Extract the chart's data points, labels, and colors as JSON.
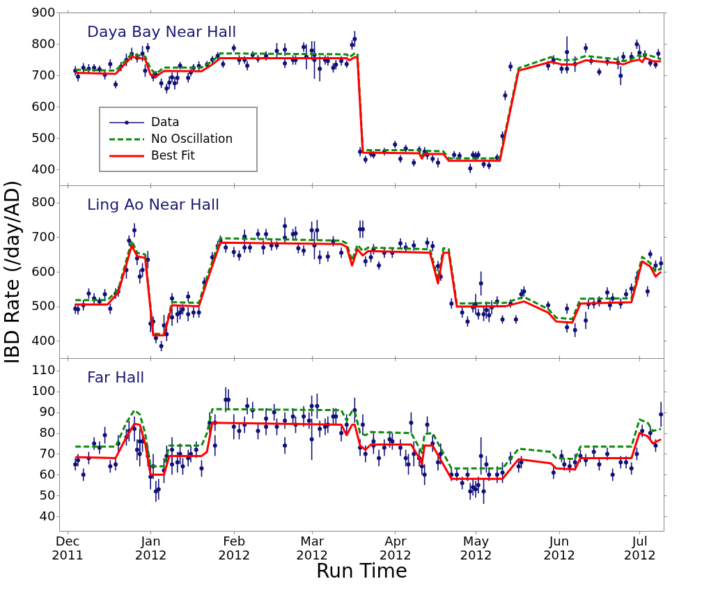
{
  "chart_data": [
    {
      "type": "line",
      "title": "Daya Bay Near Hall",
      "xlim": [
        "2011-11-28",
        "2012-07-10"
      ],
      "ylim": [
        350,
        900
      ],
      "yticks": [
        400,
        500,
        600,
        700,
        800,
        900
      ],
      "tick_labels": "y",
      "legend": "bottom left",
      "xticks": [
        {
          "value": "2011-12-01",
          "label": null
        },
        {
          "value": "2012-01-01",
          "label": null
        },
        {
          "value": "2012-02-01",
          "label": null
        },
        {
          "value": "2012-03-01",
          "label": null
        },
        {
          "value": "2012-04-01",
          "label": null
        },
        {
          "value": "2012-05-01",
          "label": null
        },
        {
          "value": "2012-06-01",
          "label": null
        },
        {
          "value": "2012-07-01",
          "label": null
        }
      ],
      "series": [
        {
          "name": "Data",
          "type": "scatter",
          "marker": "circle",
          "color": "#10107a",
          "x": [
            "2011-12-04",
            "2011-12-05",
            "2011-12-07",
            "2011-12-09",
            "2011-12-11",
            "2011-12-13",
            "2011-12-15",
            "2011-12-17",
            "2011-12-19",
            "2011-12-21",
            "2011-12-23",
            "2011-12-25",
            "2011-12-27",
            "2011-12-29",
            "2011-12-30",
            "2011-12-31",
            "2012-01-02",
            "2012-01-03",
            "2012-01-05",
            "2012-01-07",
            "2012-01-08",
            "2012-01-09",
            "2012-01-10",
            "2012-01-11",
            "2012-01-12",
            "2012-01-15",
            "2012-01-16",
            "2012-01-17",
            "2012-01-19",
            "2012-01-22",
            "2012-01-24",
            "2012-01-26",
            "2012-01-28",
            "2012-02-01",
            "2012-02-03",
            "2012-02-05",
            "2012-02-06",
            "2012-02-08",
            "2012-02-10",
            "2012-02-13",
            "2012-02-17",
            "2012-02-20",
            "2012-02-20",
            "2012-02-23",
            "2012-02-24",
            "2012-02-27",
            "2012-02-28",
            "2012-03-01",
            "2012-03-02",
            "2012-03-02",
            "2012-03-04",
            "2012-03-06",
            "2012-03-07",
            "2012-03-09",
            "2012-03-10",
            "2012-03-12",
            "2012-03-14",
            "2012-03-16",
            "2012-03-17",
            "2012-03-19",
            "2012-03-21",
            "2012-03-23",
            "2012-03-24",
            "2012-03-28",
            "2012-04-01",
            "2012-04-03",
            "2012-04-05",
            "2012-04-08",
            "2012-04-10",
            "2012-04-12",
            "2012-04-13",
            "2012-04-15",
            "2012-04-17",
            "2012-04-23",
            "2012-04-25",
            "2012-04-29",
            "2012-04-30",
            "2012-05-01",
            "2012-05-02",
            "2012-05-04",
            "2012-05-06",
            "2012-05-09",
            "2012-05-11",
            "2012-05-12",
            "2012-05-14",
            "2012-05-28",
            "2012-05-30",
            "2012-06-02",
            "2012-06-04",
            "2012-06-04",
            "2012-06-07",
            "2012-06-11",
            "2012-06-13",
            "2012-06-16",
            "2012-06-19",
            "2012-06-23",
            "2012-06-24",
            "2012-06-25",
            "2012-06-28",
            "2012-06-30",
            "2012-07-01",
            "2012-07-03",
            "2012-07-05",
            "2012-07-07",
            "2012-07-08"
          ],
          "values": [
            715,
            696,
            724,
            721,
            724,
            719,
            702,
            736,
            671,
            728,
            749,
            768,
            756,
            769,
            715,
            788,
            696,
            702,
            675,
            658,
            677,
            694,
            675,
            692,
            731,
            692,
            709,
            724,
            730,
            734,
            750,
            762,
            736,
            787,
            749,
            749,
            731,
            765,
            753,
            762,
            778,
            782,
            738,
            749,
            749,
            790,
            759,
            779,
            765,
            749,
            721,
            749,
            746,
            724,
            734,
            746,
            736,
            797,
            816,
            457,
            432,
            451,
            447,
            457,
            480,
            434,
            467,
            422,
            463,
            457,
            447,
            434,
            422,
            447,
            444,
            404,
            447,
            442,
            447,
            417,
            413,
            438,
            507,
            636,
            728,
            731,
            749,
            721,
            774,
            721,
            736,
            787,
            746,
            711,
            743,
            740,
            699,
            759,
            759,
            799,
            772,
            765,
            740,
            734,
            769
          ],
          "errors": [
            15,
            15,
            15,
            15,
            12,
            12,
            15,
            15,
            12,
            15,
            20,
            20,
            15,
            25,
            20,
            15,
            15,
            12,
            15,
            15,
            20,
            15,
            20,
            20,
            12,
            15,
            12,
            12,
            15,
            12,
            12,
            12,
            12,
            12,
            15,
            12,
            15,
            12,
            12,
            15,
            25,
            20,
            15,
            15,
            15,
            15,
            40,
            30,
            20,
            60,
            40,
            15,
            15,
            15,
            15,
            15,
            12,
            15,
            25,
            15,
            12,
            12,
            12,
            12,
            12,
            12,
            12,
            12,
            12,
            15,
            15,
            12,
            15,
            12,
            12,
            15,
            12,
            15,
            12,
            12,
            12,
            12,
            15,
            15,
            15,
            15,
            15,
            15,
            50,
            15,
            25,
            15,
            12,
            12,
            12,
            20,
            30,
            15,
            15,
            15,
            25,
            15,
            12,
            12,
            15
          ]
        },
        {
          "name": "No Oscillation",
          "line_style": "dashed",
          "color": "#0a8a0a",
          "x": [
            "2011-12-04",
            "2011-12-19",
            "2011-12-25",
            "2011-12-30",
            "2012-01-01",
            "2012-01-03",
            "2012-01-06",
            "2012-01-20",
            "2012-01-24",
            "2012-01-27",
            "2012-03-14",
            "2012-03-15",
            "2012-03-17",
            "2012-03-18",
            "2012-03-20",
            "2012-04-10",
            "2012-04-11",
            "2012-04-12",
            "2012-04-19",
            "2012-04-21",
            "2012-05-10",
            "2012-05-17",
            "2012-05-29",
            "2012-06-02",
            "2012-06-07",
            "2012-06-11",
            "2012-06-22",
            "2012-06-25",
            "2012-06-28",
            "2012-07-01",
            "2012-07-02",
            "2012-07-03",
            "2012-07-06",
            "2012-07-09"
          ],
          "values": [
            718,
            715,
            768,
            760,
            720,
            705,
            725,
            725,
            745,
            770,
            767,
            758,
            770,
            770,
            462,
            462,
            442,
            460,
            458,
            436,
            436,
            723,
            758,
            748,
            750,
            762,
            752,
            745,
            752,
            765,
            755,
            768,
            760,
            752
          ]
        },
        {
          "name": "Best Fit",
          "line_style": "solid",
          "color": "#ff0000",
          "x": [
            "2011-12-04",
            "2011-12-19",
            "2011-12-25",
            "2011-12-30",
            "2012-01-01",
            "2012-01-03",
            "2012-01-06",
            "2012-01-20",
            "2012-01-24",
            "2012-01-27",
            "2012-03-14",
            "2012-03-15",
            "2012-03-17",
            "2012-03-18",
            "2012-03-20",
            "2012-04-10",
            "2012-04-11",
            "2012-04-12",
            "2012-04-19",
            "2012-04-21",
            "2012-05-10",
            "2012-05-17",
            "2012-05-29",
            "2012-06-02",
            "2012-06-07",
            "2012-06-11",
            "2012-06-22",
            "2012-06-25",
            "2012-06-28",
            "2012-07-01",
            "2012-07-02",
            "2012-07-03",
            "2012-07-06",
            "2012-07-09"
          ],
          "values": [
            708,
            705,
            759,
            752,
            702,
            696,
            714,
            713,
            735,
            755,
            755,
            748,
            758,
            757,
            454,
            452,
            435,
            450,
            450,
            428,
            428,
            715,
            743,
            735,
            735,
            748,
            740,
            735,
            745,
            750,
            742,
            756,
            745,
            745
          ]
        }
      ]
    },
    {
      "type": "line",
      "title": "Ling Ao Near Hall",
      "ylabel": "IBD Rate (/day/AD)",
      "xlim": [
        "2011-11-28",
        "2012-07-10"
      ],
      "ylim": [
        350,
        850
      ],
      "yticks": [
        400,
        500,
        600,
        700,
        800
      ],
      "tick_labels": "y",
      "xticks": [
        {
          "value": "2011-12-01",
          "label": null
        },
        {
          "value": "2012-01-01",
          "label": null
        },
        {
          "value": "2012-02-01",
          "label": null
        },
        {
          "value": "2012-03-01",
          "label": null
        },
        {
          "value": "2012-04-01",
          "label": null
        },
        {
          "value": "2012-05-01",
          "label": null
        },
        {
          "value": "2012-06-01",
          "label": null
        },
        {
          "value": "2012-07-01",
          "label": null
        }
      ],
      "series": [
        {
          "type": "scatter",
          "marker": "circle",
          "color": "#10107a",
          "x": [
            "2011-12-04",
            "2011-12-05",
            "2011-12-07",
            "2011-12-09",
            "2011-12-11",
            "2011-12-13",
            "2011-12-15",
            "2011-12-17",
            "2011-12-19",
            "2011-12-20",
            "2011-12-23",
            "2011-12-24",
            "2011-12-26",
            "2011-12-27",
            "2011-12-28",
            "2011-12-29",
            "2011-12-31",
            "2012-01-01",
            "2012-01-02",
            "2012-01-03",
            "2012-01-05",
            "2012-01-06",
            "2012-01-07",
            "2012-01-09",
            "2012-01-09",
            "2012-01-11",
            "2012-01-12",
            "2012-01-13",
            "2012-01-15",
            "2012-01-15",
            "2012-01-17",
            "2012-01-19",
            "2012-01-21",
            "2012-01-24",
            "2012-01-26",
            "2012-01-27",
            "2012-01-29",
            "2012-02-01",
            "2012-02-03",
            "2012-02-05",
            "2012-02-05",
            "2012-02-07",
            "2012-02-10",
            "2012-02-12",
            "2012-02-13",
            "2012-02-15",
            "2012-02-17",
            "2012-02-20",
            "2012-02-20",
            "2012-02-23",
            "2012-02-24",
            "2012-02-25",
            "2012-02-27",
            "2012-03-01",
            "2012-03-02",
            "2012-03-03",
            "2012-03-04",
            "2012-03-07",
            "2012-03-09",
            "2012-03-12",
            "2012-03-19",
            "2012-03-20",
            "2012-03-21",
            "2012-03-23",
            "2012-03-24",
            "2012-03-26",
            "2012-03-28",
            "2012-03-31",
            "2012-04-03",
            "2012-04-05",
            "2012-04-08",
            "2012-04-13",
            "2012-04-15",
            "2012-04-17",
            "2012-04-18",
            "2012-04-22",
            "2012-04-26",
            "2012-04-28",
            "2012-04-30",
            "2012-05-01",
            "2012-05-02",
            "2012-05-03",
            "2012-05-04",
            "2012-05-05",
            "2012-05-06",
            "2012-05-07",
            "2012-05-09",
            "2012-05-11",
            "2012-05-14",
            "2012-05-16",
            "2012-05-18",
            "2012-05-19",
            "2012-05-28",
            "2012-06-04",
            "2012-06-04",
            "2012-06-07",
            "2012-06-11",
            "2012-06-12",
            "2012-06-14",
            "2012-06-16",
            "2012-06-19",
            "2012-06-20",
            "2012-06-21",
            "2012-06-24",
            "2012-06-26",
            "2012-06-28",
            "2012-06-30",
            "2012-07-04",
            "2012-07-05",
            "2012-07-07",
            "2012-07-09"
          ],
          "values": [
            493,
            491,
            503,
            537,
            523,
            514,
            535,
            493,
            537,
            543,
            605,
            690,
            720,
            639,
            586,
            605,
            635,
            450,
            456,
            408,
            385,
            445,
            419,
            523,
            468,
            477,
            482,
            491,
            477,
            528,
            482,
            482,
            569,
            642,
            674,
            690,
            670,
            657,
            647,
            702,
            670,
            670,
            709,
            670,
            709,
            676,
            676,
            732,
            699,
            709,
            711,
            668,
            661,
            720,
            676,
            720,
            642,
            644,
            688,
            655,
            723,
            723,
            630,
            642,
            665,
            618,
            655,
            655,
            682,
            670,
            676,
            684,
            674,
            616,
            586,
            508,
            482,
            456,
            497,
            506,
            477,
            566,
            477,
            489,
            474,
            497,
            514,
            462,
            508,
            462,
            535,
            543,
            503,
            439,
            493,
            431,
            459,
            506,
            508,
            514,
            540,
            503,
            523,
            508,
            535,
            551,
            581,
            543,
            651,
            618,
            624
          ],
          "errors": [
            15,
            15,
            15,
            15,
            15,
            12,
            15,
            15,
            15,
            15,
            25,
            15,
            20,
            20,
            20,
            20,
            25,
            25,
            15,
            15,
            15,
            30,
            20,
            15,
            25,
            25,
            20,
            15,
            20,
            15,
            15,
            15,
            15,
            15,
            15,
            15,
            15,
            15,
            15,
            20,
            15,
            15,
            15,
            20,
            15,
            15,
            12,
            25,
            15,
            15,
            20,
            15,
            15,
            25,
            40,
            30,
            20,
            15,
            15,
            15,
            25,
            25,
            15,
            15,
            15,
            12,
            15,
            15,
            15,
            15,
            15,
            15,
            15,
            15,
            12,
            15,
            15,
            15,
            15,
            30,
            15,
            35,
            20,
            25,
            20,
            20,
            15,
            12,
            12,
            12,
            15,
            15,
            12,
            15,
            15,
            20,
            25,
            15,
            15,
            15,
            15,
            15,
            15,
            15,
            15,
            15,
            20,
            15,
            12,
            15,
            20
          ]
        },
        {
          "line_style": "dashed",
          "color": "#0a8a0a",
          "x": [
            "2011-12-04",
            "2011-12-16",
            "2011-12-20",
            "2011-12-25",
            "2011-12-27",
            "2011-12-30",
            "2012-01-02",
            "2012-01-06",
            "2012-01-09",
            "2012-01-19",
            "2012-01-22",
            "2012-01-27",
            "2012-03-12",
            "2012-03-14",
            "2012-03-16",
            "2012-03-18",
            "2012-03-20",
            "2012-03-22",
            "2012-04-14",
            "2012-04-17",
            "2012-04-19",
            "2012-04-21",
            "2012-04-24",
            "2012-05-12",
            "2012-05-19",
            "2012-05-28",
            "2012-05-31",
            "2012-06-06",
            "2012-06-09",
            "2012-06-28",
            "2012-07-02",
            "2012-07-05",
            "2012-07-07",
            "2012-07-09"
          ],
          "values": [
            518,
            518,
            548,
            690,
            655,
            650,
            420,
            420,
            512,
            510,
            585,
            697,
            690,
            682,
            632,
            678,
            660,
            670,
            665,
            578,
            668,
            665,
            508,
            510,
            527,
            492,
            467,
            463,
            522,
            523,
            643,
            625,
            600,
            610
          ]
        },
        {
          "line_style": "solid",
          "color": "#ff0000",
          "x": [
            "2011-12-04",
            "2011-12-16",
            "2011-12-20",
            "2011-12-25",
            "2011-12-27",
            "2011-12-30",
            "2012-01-02",
            "2012-01-06",
            "2012-01-09",
            "2012-01-19",
            "2012-01-22",
            "2012-01-27",
            "2012-03-12",
            "2012-03-14",
            "2012-03-16",
            "2012-03-18",
            "2012-03-20",
            "2012-03-22",
            "2012-04-14",
            "2012-04-17",
            "2012-04-19",
            "2012-04-21",
            "2012-04-24",
            "2012-05-12",
            "2012-05-19",
            "2012-05-28",
            "2012-05-31",
            "2012-06-06",
            "2012-06-09",
            "2012-06-28",
            "2012-07-02",
            "2012-07-05",
            "2012-07-07",
            "2012-07-09"
          ],
          "values": [
            505,
            505,
            540,
            676,
            645,
            640,
            416,
            416,
            503,
            500,
            572,
            684,
            680,
            672,
            618,
            665,
            647,
            660,
            655,
            566,
            655,
            655,
            499,
            500,
            514,
            482,
            456,
            453,
            508,
            512,
            630,
            615,
            586,
            600
          ]
        }
      ]
    },
    {
      "type": "line",
      "title": "Far Hall",
      "xlabel": "Run Time",
      "xlim": [
        "2011-11-28",
        "2012-07-10"
      ],
      "ylim": [
        33,
        116
      ],
      "yticks": [
        40,
        50,
        60,
        70,
        80,
        90,
        100,
        110
      ],
      "xticks": [
        {
          "value": "2011-12-01",
          "label": "Dec\n2011"
        },
        {
          "value": "2012-01-01",
          "label": "Jan\n2012"
        },
        {
          "value": "2012-02-01",
          "label": "Feb\n2012"
        },
        {
          "value": "2012-03-01",
          "label": "Mar\n2012"
        },
        {
          "value": "2012-04-01",
          "label": "Apr\n2012"
        },
        {
          "value": "2012-05-01",
          "label": "May\n2012"
        },
        {
          "value": "2012-06-01",
          "label": "Jun\n2012"
        },
        {
          "value": "2012-07-01",
          "label": "Jul\n2012"
        }
      ],
      "series": [
        {
          "type": "scatter",
          "marker": "circle",
          "color": "#10107a",
          "x": [
            "2011-12-04",
            "2011-12-05",
            "2011-12-07",
            "2011-12-09",
            "2011-12-11",
            "2011-12-13",
            "2011-12-15",
            "2011-12-17",
            "2011-12-19",
            "2011-12-20",
            "2011-12-23",
            "2011-12-24",
            "2011-12-26",
            "2011-12-27",
            "2011-12-28",
            "2011-12-28",
            "2011-12-29",
            "2011-12-31",
            "2012-01-01",
            "2012-01-02",
            "2012-01-03",
            "2012-01-04",
            "2012-01-06",
            "2012-01-07",
            "2012-01-09",
            "2012-01-09",
            "2012-01-11",
            "2012-01-12",
            "2012-01-13",
            "2012-01-15",
            "2012-01-16",
            "2012-01-18",
            "2012-01-20",
            "2012-01-23",
            "2012-01-25",
            "2012-01-25",
            "2012-01-29",
            "2012-01-30",
            "2012-02-01",
            "2012-02-03",
            "2012-02-05",
            "2012-02-06",
            "2012-02-08",
            "2012-02-10",
            "2012-02-13",
            "2012-02-13",
            "2012-02-16",
            "2012-02-17",
            "2012-02-20",
            "2012-02-20",
            "2012-02-23",
            "2012-02-24",
            "2012-02-27",
            "2012-02-29",
            "2012-03-01",
            "2012-03-01",
            "2012-03-03",
            "2012-03-04",
            "2012-03-06",
            "2012-03-07",
            "2012-03-09",
            "2012-03-10",
            "2012-03-12",
            "2012-03-14",
            "2012-03-17",
            "2012-03-19",
            "2012-03-20",
            "2012-03-21",
            "2012-03-24",
            "2012-03-24",
            "2012-03-26",
            "2012-03-28",
            "2012-03-30",
            "2012-03-31",
            "2012-04-03",
            "2012-04-05",
            "2012-04-06",
            "2012-04-07",
            "2012-04-08",
            "2012-04-10",
            "2012-04-11",
            "2012-04-12",
            "2012-04-13",
            "2012-04-15",
            "2012-04-17",
            "2012-04-18",
            "2012-04-22",
            "2012-04-24",
            "2012-04-26",
            "2012-04-28",
            "2012-04-29",
            "2012-04-30",
            "2012-05-01",
            "2012-05-02",
            "2012-05-03",
            "2012-05-04",
            "2012-05-05",
            "2012-05-06",
            "2012-05-09",
            "2012-05-11",
            "2012-05-14",
            "2012-05-17",
            "2012-05-18",
            "2012-05-30",
            "2012-06-02",
            "2012-06-03",
            "2012-06-05",
            "2012-06-07",
            "2012-06-09",
            "2012-06-11",
            "2012-06-14",
            "2012-06-16",
            "2012-06-19",
            "2012-06-21",
            "2012-06-24",
            "2012-06-26",
            "2012-06-28",
            "2012-06-30",
            "2012-07-02",
            "2012-07-05",
            "2012-07-07",
            "2012-07-09"
          ],
          "values": [
            65,
            67,
            60,
            68,
            75,
            73,
            79,
            64,
            65,
            75,
            78,
            81,
            82,
            72,
            76,
            70,
            76,
            69,
            59,
            64,
            52,
            53,
            62,
            69,
            65,
            72,
            66,
            70,
            64,
            68,
            70,
            72,
            63,
            85,
            74,
            85,
            96,
            96,
            83,
            81,
            84,
            93,
            91,
            81,
            83,
            87,
            90,
            83,
            74,
            86,
            88,
            84,
            88,
            86,
            77,
            93,
            93,
            82,
            83,
            84,
            88,
            88,
            80,
            84,
            91,
            73,
            84,
            70,
            76,
            74,
            68,
            73,
            77,
            76,
            73,
            68,
            65,
            85,
            70,
            68,
            64,
            60,
            84,
            75,
            66,
            70,
            60,
            60,
            56,
            60,
            52,
            54,
            53,
            55,
            69,
            52,
            65,
            60,
            60,
            61,
            68,
            64,
            66,
            61,
            69,
            65,
            64,
            66,
            69,
            67,
            71,
            65,
            70,
            60,
            66,
            66,
            63,
            70,
            81,
            80,
            74,
            89
          ],
          "errors": [
            3,
            3,
            3,
            3,
            3,
            3,
            4,
            3,
            3,
            4,
            4,
            5,
            6,
            5,
            6,
            6,
            5,
            5,
            6,
            6,
            5,
            5,
            6,
            5,
            5,
            6,
            5,
            5,
            4,
            4,
            4,
            4,
            4,
            5,
            5,
            4,
            6,
            5,
            6,
            4,
            4,
            4,
            4,
            4,
            4,
            5,
            4,
            4,
            4,
            4,
            4,
            4,
            5,
            4,
            10,
            5,
            6,
            4,
            4,
            4,
            4,
            4,
            4,
            5,
            6,
            4,
            5,
            4,
            4,
            4,
            4,
            4,
            4,
            4,
            4,
            4,
            5,
            5,
            6,
            4,
            4,
            5,
            4,
            4,
            4,
            5,
            3,
            3,
            3,
            3,
            4,
            4,
            4,
            4,
            9,
            6,
            4,
            3,
            4,
            5,
            3,
            3,
            3,
            3,
            3,
            3,
            3,
            4,
            3,
            3,
            3,
            3,
            3,
            3,
            3,
            3,
            3,
            3,
            3,
            3,
            3,
            6
          ]
        },
        {
          "line_style": "dashed",
          "color": "#0a8a0a",
          "x": [
            "2011-12-04",
            "2011-12-19",
            "2011-12-23",
            "2011-12-26",
            "2011-12-28",
            "2011-12-30",
            "2012-01-01",
            "2012-01-06",
            "2012-01-08",
            "2012-01-20",
            "2012-01-22",
            "2012-01-24",
            "2012-03-12",
            "2012-03-14",
            "2012-03-16",
            "2012-03-17",
            "2012-03-19",
            "2012-03-21",
            "2012-03-23",
            "2012-04-07",
            "2012-04-10",
            "2012-04-11",
            "2012-04-12",
            "2012-04-15",
            "2012-04-22",
            "2012-05-11",
            "2012-05-17",
            "2012-05-29",
            "2012-05-31",
            "2012-06-07",
            "2012-06-09",
            "2012-06-28",
            "2012-07-01",
            "2012-07-04",
            "2012-07-06",
            "2012-07-09"
          ],
          "values": [
            73.5,
            73.5,
            85,
            91,
            89,
            80,
            64,
            64,
            74,
            74,
            80,
            91.5,
            91,
            86,
            90.5,
            90.5,
            80,
            79,
            80.5,
            80,
            73,
            70.5,
            79.5,
            80,
            63,
            63,
            72.5,
            71,
            68,
            67.5,
            73.5,
            73.5,
            86.5,
            85,
            81,
            82
          ]
        },
        {
          "line_style": "solid",
          "color": "#ff0000",
          "x": [
            "2011-12-04",
            "2011-12-19",
            "2011-12-23",
            "2011-12-26",
            "2011-12-28",
            "2011-12-30",
            "2012-01-01",
            "2012-01-06",
            "2012-01-08",
            "2012-01-20",
            "2012-01-22",
            "2012-01-24",
            "2012-03-12",
            "2012-03-14",
            "2012-03-16",
            "2012-03-17",
            "2012-03-19",
            "2012-03-21",
            "2012-03-23",
            "2012-04-07",
            "2012-04-10",
            "2012-04-11",
            "2012-04-12",
            "2012-04-15",
            "2012-04-22",
            "2012-05-11",
            "2012-05-17",
            "2012-05-29",
            "2012-05-31",
            "2012-06-07",
            "2012-06-09",
            "2012-06-28",
            "2012-07-01",
            "2012-07-04",
            "2012-07-06",
            "2012-07-09"
          ],
          "values": [
            68.5,
            68,
            78,
            84.5,
            84,
            75,
            60,
            60,
            69,
            69,
            71,
            85,
            84,
            79,
            84,
            84,
            74,
            72,
            74.5,
            74.5,
            68,
            65,
            74,
            74,
            58,
            58,
            67.5,
            65.5,
            63,
            62.5,
            68,
            68,
            80,
            78.5,
            75,
            77
          ]
        }
      ]
    }
  ]
}
